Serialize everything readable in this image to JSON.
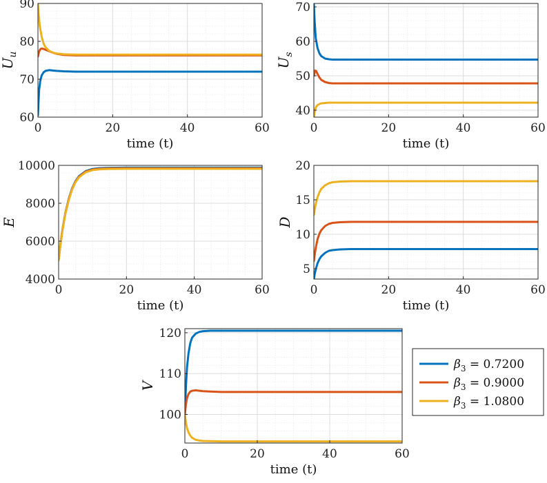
{
  "legend": {
    "entries": [
      {
        "symbol": "β",
        "sub": "3",
        "text": " = 0.7200"
      },
      {
        "symbol": "β",
        "sub": "3",
        "text": " = 0.9000"
      },
      {
        "symbol": "β",
        "sub": "3",
        "text": " = 1.0800"
      }
    ]
  },
  "colors": {
    "series": [
      "#0072BD",
      "#D95319",
      "#EDB120"
    ],
    "grid": "#dcdcdc",
    "axis": "#262626"
  },
  "chart_data": [
    {
      "type": "line",
      "id": "Uu",
      "ylabel": "U",
      "ylabel_sub": "u",
      "xlabel": "time (t)",
      "xlim": [
        0,
        60
      ],
      "ylim": [
        60,
        90
      ],
      "xticks": [
        0,
        20,
        40,
        60
      ],
      "yticks": [
        60,
        70,
        80,
        90
      ],
      "grid": true,
      "minor_grid": true,
      "series": [
        {
          "x": [
            0,
            0.3,
            0.6,
            1,
            1.5,
            2,
            3,
            4,
            5,
            7,
            10,
            15,
            20,
            30,
            40,
            50,
            60
          ],
          "values": [
            60.5,
            67,
            69.5,
            71,
            71.8,
            72.2,
            72.4,
            72.3,
            72.2,
            72.1,
            72,
            72,
            72,
            72,
            72,
            72,
            72
          ]
        },
        {
          "x": [
            0,
            0.3,
            0.7,
            1,
            1.5,
            2,
            3,
            4,
            5,
            7,
            10,
            15,
            20,
            30,
            40,
            50,
            60
          ],
          "values": [
            76,
            77.3,
            78,
            78.1,
            78,
            77.8,
            77.4,
            77,
            76.7,
            76.4,
            76.3,
            76.3,
            76.3,
            76.3,
            76.3,
            76.3,
            76.3
          ]
        },
        {
          "x": [
            0,
            0.2,
            0.5,
            1,
            1.5,
            2,
            3,
            4,
            5,
            7,
            10,
            15,
            20,
            30,
            40,
            50,
            60
          ],
          "values": [
            90,
            87,
            84,
            81.2,
            79.5,
            78.5,
            77.5,
            77,
            76.8,
            76.6,
            76.5,
            76.5,
            76.5,
            76.5,
            76.5,
            76.5,
            76.5
          ]
        }
      ]
    },
    {
      "type": "line",
      "id": "Us",
      "ylabel": "U",
      "ylabel_sub": "s",
      "xlabel": "time (t)",
      "xlim": [
        0,
        60
      ],
      "ylim": [
        38,
        71
      ],
      "xticks": [
        0,
        20,
        40,
        60
      ],
      "yticks": [
        40,
        50,
        60,
        70
      ],
      "grid": true,
      "minor_grid": true,
      "series": [
        {
          "x": [
            0,
            0.2,
            0.5,
            1,
            1.5,
            2,
            3,
            4,
            5,
            7,
            10,
            15,
            20,
            30,
            40,
            50,
            60
          ],
          "values": [
            71,
            66,
            61,
            58,
            56.5,
            55.7,
            55,
            54.8,
            54.7,
            54.7,
            54.7,
            54.7,
            54.7,
            54.7,
            54.7,
            54.7,
            54.7
          ]
        },
        {
          "x": [
            0,
            0.3,
            0.6,
            1,
            1.5,
            2,
            3,
            4,
            5,
            7,
            10,
            15,
            20,
            30,
            40,
            50,
            60
          ],
          "values": [
            50,
            51.5,
            51.4,
            50.5,
            49.5,
            48.8,
            48.2,
            47.9,
            47.8,
            47.8,
            47.8,
            47.8,
            47.8,
            47.8,
            47.8,
            47.8,
            47.8
          ]
        },
        {
          "x": [
            0,
            0.3,
            0.6,
            1,
            1.5,
            2,
            3,
            4,
            5,
            7,
            10,
            15,
            20,
            30,
            40,
            50,
            60
          ],
          "values": [
            38,
            40,
            41,
            41.5,
            41.8,
            42,
            42.1,
            42.2,
            42.2,
            42.2,
            42.2,
            42.2,
            42.2,
            42.2,
            42.2,
            42.2,
            42.2
          ]
        }
      ]
    },
    {
      "type": "line",
      "id": "E",
      "ylabel": "E",
      "xlabel": "time (t)",
      "xlim": [
        0,
        60
      ],
      "ylim": [
        4000,
        10000
      ],
      "xticks": [
        0,
        20,
        40,
        60
      ],
      "yticks": [
        4000,
        6000,
        8000,
        10000
      ],
      "grid": true,
      "minor_grid": true,
      "series": [
        {
          "x": [
            0,
            0.5,
            1,
            1.5,
            2,
            3,
            4,
            5,
            6,
            8,
            10,
            12,
            15,
            20,
            30,
            40,
            50,
            60
          ],
          "values": [
            5000,
            5800,
            6450,
            7000,
            7500,
            8250,
            8800,
            9180,
            9430,
            9700,
            9810,
            9850,
            9870,
            9880,
            9880,
            9880,
            9880,
            9880
          ]
        },
        {
          "x": [
            0,
            0.5,
            1,
            1.5,
            2,
            3,
            4,
            5,
            6,
            8,
            10,
            12,
            15,
            20,
            30,
            40,
            50,
            60
          ],
          "values": [
            5000,
            5790,
            6430,
            6980,
            7470,
            8220,
            8770,
            9150,
            9400,
            9670,
            9780,
            9820,
            9840,
            9850,
            9850,
            9850,
            9850,
            9850
          ]
        },
        {
          "x": [
            0,
            0.5,
            1,
            1.5,
            2,
            3,
            4,
            5,
            6,
            8,
            10,
            12,
            15,
            20,
            30,
            40,
            50,
            60
          ],
          "values": [
            5000,
            5780,
            6410,
            6950,
            7440,
            8190,
            8740,
            9120,
            9370,
            9640,
            9750,
            9790,
            9810,
            9820,
            9820,
            9820,
            9820,
            9820
          ]
        }
      ]
    },
    {
      "type": "line",
      "id": "D",
      "ylabel": "D",
      "xlabel": "time (t)",
      "xlim": [
        0,
        60
      ],
      "ylim": [
        3.5,
        20
      ],
      "xticks": [
        0,
        20,
        40,
        60
      ],
      "yticks": [
        5,
        10,
        15,
        20
      ],
      "grid": true,
      "minor_grid": true,
      "series": [
        {
          "x": [
            0,
            0.3,
            0.6,
            1,
            1.5,
            2,
            3,
            4,
            5,
            7,
            10,
            15,
            20,
            30,
            40,
            50,
            60
          ],
          "values": [
            3.5,
            4.4,
            5.1,
            5.8,
            6.4,
            6.8,
            7.3,
            7.6,
            7.7,
            7.8,
            7.85,
            7.85,
            7.85,
            7.85,
            7.85,
            7.85,
            7.85
          ]
        },
        {
          "x": [
            0,
            0.3,
            0.6,
            1,
            1.5,
            2,
            3,
            4,
            5,
            7,
            10,
            15,
            20,
            30,
            40,
            50,
            60
          ],
          "values": [
            6.1,
            7.3,
            8.3,
            9.3,
            10.1,
            10.6,
            11.2,
            11.5,
            11.65,
            11.75,
            11.8,
            11.8,
            11.8,
            11.8,
            11.8,
            11.8,
            11.8
          ]
        },
        {
          "x": [
            0,
            0.3,
            0.6,
            1,
            1.5,
            2,
            3,
            4,
            5,
            7,
            10,
            15,
            20,
            30,
            40,
            50,
            60
          ],
          "values": [
            12.8,
            13.8,
            14.6,
            15.4,
            16.1,
            16.6,
            17.1,
            17.4,
            17.55,
            17.65,
            17.7,
            17.7,
            17.7,
            17.7,
            17.7,
            17.7,
            17.7
          ]
        }
      ]
    },
    {
      "type": "line",
      "id": "V",
      "ylabel": "V",
      "xlabel": "time (t)",
      "xlim": [
        0,
        60
      ],
      "ylim": [
        93,
        121
      ],
      "xticks": [
        0,
        20,
        40,
        60
      ],
      "yticks": [
        100,
        110,
        120
      ],
      "grid": true,
      "minor_grid": true,
      "series": [
        {
          "x": [
            0,
            0.3,
            0.6,
            1,
            1.5,
            2,
            3,
            4,
            5,
            7,
            10,
            15,
            20,
            30,
            40,
            50,
            60
          ],
          "values": [
            100,
            107,
            111.5,
            115,
            117.5,
            118.8,
            119.8,
            120.2,
            120.4,
            120.5,
            120.5,
            120.5,
            120.5,
            120.5,
            120.5,
            120.5,
            120.5
          ]
        },
        {
          "x": [
            0,
            0.3,
            0.6,
            1,
            1.5,
            2,
            3,
            4,
            5,
            7,
            10,
            15,
            20,
            30,
            40,
            50,
            60
          ],
          "values": [
            100,
            102.5,
            104,
            105,
            105.6,
            105.8,
            105.9,
            105.8,
            105.7,
            105.6,
            105.5,
            105.5,
            105.5,
            105.5,
            105.5,
            105.5,
            105.5
          ]
        },
        {
          "x": [
            0,
            0.3,
            0.6,
            1,
            1.5,
            2,
            3,
            4,
            5,
            7,
            10,
            15,
            20,
            30,
            40,
            50,
            60
          ],
          "values": [
            100,
            98,
            96.7,
            95.6,
            94.8,
            94.3,
            93.8,
            93.6,
            93.5,
            93.45,
            93.4,
            93.4,
            93.4,
            93.4,
            93.4,
            93.4,
            93.4
          ]
        }
      ]
    }
  ]
}
